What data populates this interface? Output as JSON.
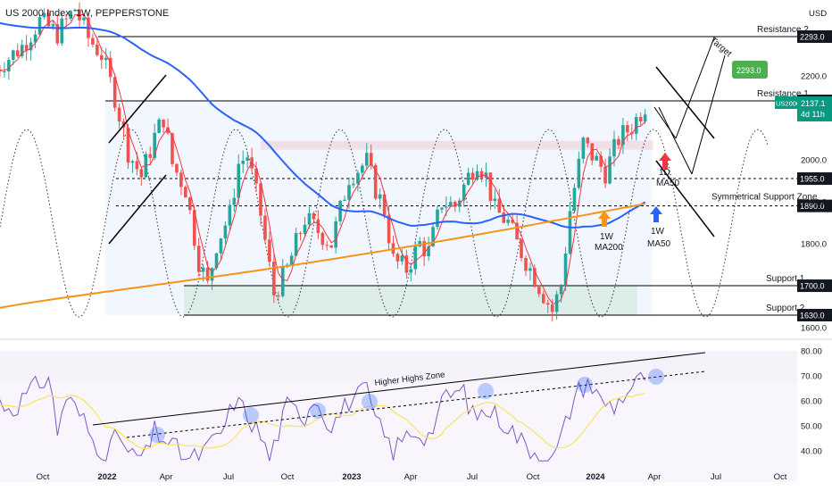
{
  "header": {
    "symbol_title": "US 2000 Index, 1W, PEPPERSTONE",
    "currency": "USD"
  },
  "chart_data": {
    "type": "candlestick",
    "title": "US 2000 Index, 1W, PEPPERSTONE",
    "ylim": [
      1560,
      2385
    ],
    "y_ticks": [
      1600,
      1700,
      1800,
      1900,
      2000,
      2100,
      2200
    ],
    "x_ticks": [
      "Oct",
      "2022",
      "Apr",
      "Jul",
      "Oct",
      "2023",
      "Apr",
      "Jul",
      "Oct",
      "2024",
      "Apr",
      "Jul",
      "Oct"
    ],
    "levels": [
      {
        "name": "Resistance 2",
        "value": 2293.0,
        "label": "2293.0",
        "color": "#000000",
        "style": "solid"
      },
      {
        "name": "Resistance 1",
        "value": 2140.0,
        "label": "2140.0",
        "color": "#000000",
        "style": "solid"
      },
      {
        "name": "",
        "value": 1955.0,
        "label": "1955.0",
        "color": "#000000",
        "style": "dashed"
      },
      {
        "name": "Symmetrical Support Zone",
        "value": 1890.0,
        "label": "1890.0",
        "color": "#000000",
        "style": "dashed"
      },
      {
        "name": "Support 1",
        "value": 1700.0,
        "label": "1700.0",
        "color": "#000000",
        "style": "solid"
      },
      {
        "name": "Support 2",
        "value": 1630.0,
        "label": "1630.0",
        "color": "#000000",
        "style": "solid"
      }
    ],
    "current_price": {
      "label": "US2000",
      "value": "2137.1",
      "countdown": "4d 11h",
      "color": "#089981"
    },
    "extra_axis_label": "1600.0",
    "target_box": {
      "label": "2293.0",
      "color": "#4caf50"
    },
    "annotations": [
      "Target",
      "1D MA50",
      "1W MA200",
      "1W MA50"
    ],
    "annotation_lines": {
      "target": "Target",
      "ma50_1d": [
        "1D",
        "MA50"
      ],
      "ma200_1w": [
        "1W",
        "MA200"
      ],
      "ma50_1w": [
        "1W",
        "MA50"
      ]
    },
    "series_colors": {
      "up": "#26a69a",
      "down": "#ef5350",
      "ma50_1w": "#2962ff",
      "ma200_1w": "#f7931a",
      "ma50_1d": "#f23645",
      "rsi": "#7e57c2",
      "rsi_ma": "#fbe35c"
    },
    "rsi": {
      "panel_label": "Higher Highs Zone",
      "y_ticks": [
        40,
        50,
        60,
        70,
        80
      ],
      "ylim": [
        35,
        85
      ],
      "y_tick_labels": [
        "40.00",
        "50.00",
        "60.00",
        "70.00",
        "80.00"
      ]
    }
  }
}
